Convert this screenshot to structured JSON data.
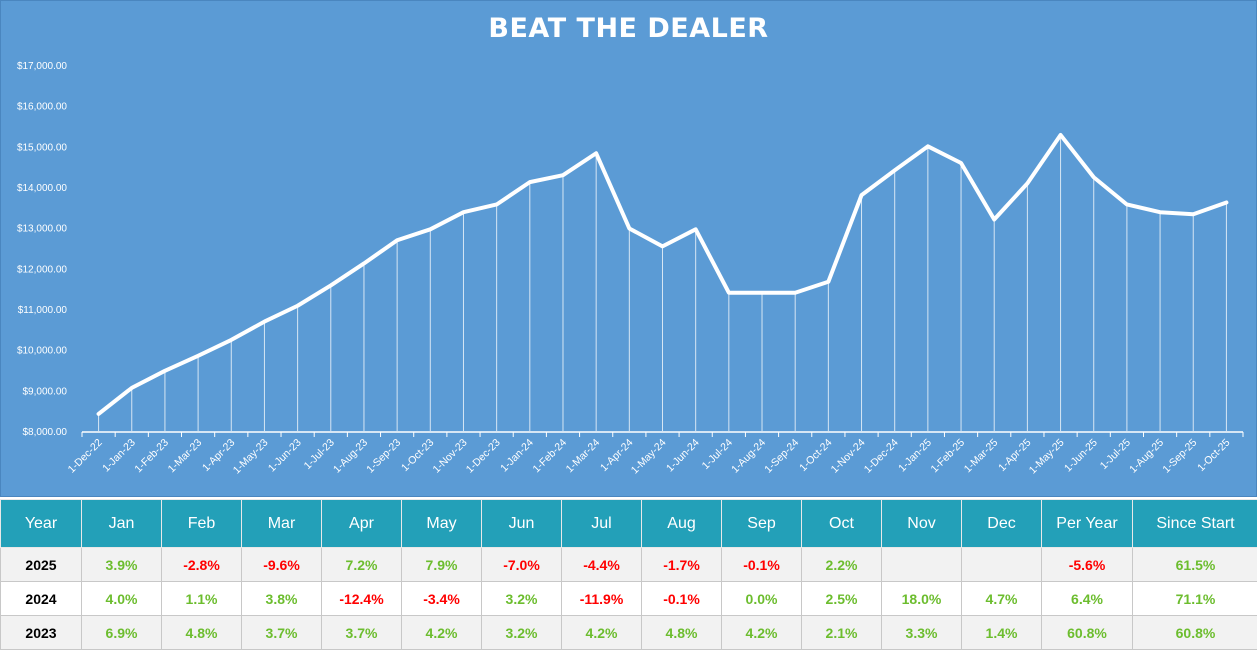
{
  "chart_data": {
    "type": "line",
    "title": "BEAT THE DEALER",
    "xlabel": "",
    "ylabel": "",
    "ylim": [
      8000,
      17000
    ],
    "y_ticks": [
      "$8,000.00",
      "$9,000.00",
      "$10,000.00",
      "$11,000.00",
      "$12,000.00",
      "$13,000.00",
      "$14,000.00",
      "$15,000.00",
      "$16,000.00",
      "$17,000.00"
    ],
    "y_tick_values": [
      8000,
      9000,
      10000,
      11000,
      12000,
      13000,
      14000,
      15000,
      16000,
      17000
    ],
    "categories": [
      "1-Dec-22",
      "1-Jan-23",
      "1-Feb-23",
      "1-Mar-23",
      "1-Apr-23",
      "1-May-23",
      "1-Jun-23",
      "1-Jul-23",
      "1-Aug-23",
      "1-Sep-23",
      "1-Oct-23",
      "1-Nov-23",
      "1-Dec-23",
      "1-Jan-24",
      "1-Feb-24",
      "1-Mar-24",
      "1-Apr-24",
      "1-May-24",
      "1-Jun-24",
      "1-Jul-24",
      "1-Aug-24",
      "1-Sep-24",
      "1-Oct-24",
      "1-Nov-24",
      "1-Dec-24",
      "1-Jan-25",
      "1-Feb-25",
      "1-Mar-25",
      "1-Apr-25",
      "1-May-25",
      "1-Jun-25",
      "1-Jul-25",
      "1-Aug-25",
      "1-Sep-25",
      "1-Oct-25"
    ],
    "values": [
      8420,
      9060,
      9480,
      9850,
      10240,
      10690,
      11080,
      11580,
      12120,
      12690,
      12960,
      13380,
      13570,
      14120,
      14290,
      14830,
      12980,
      12540,
      12960,
      11400,
      11400,
      11400,
      11670,
      13800,
      14410,
      15000,
      14590,
      13200,
      14090,
      15280,
      14240,
      13570,
      13380,
      13330,
      13620
    ],
    "grid": false,
    "colors": {
      "background": "#5b9bd5",
      "line": "#ffffff"
    }
  },
  "table": {
    "headers": [
      "Year",
      "Jan",
      "Feb",
      "Mar",
      "Apr",
      "May",
      "Jun",
      "Jul",
      "Aug",
      "Sep",
      "Oct",
      "Nov",
      "Dec",
      "Per Year",
      "Since Start"
    ],
    "rows": [
      [
        "2025",
        "3.9%",
        "-2.8%",
        "-9.6%",
        "7.2%",
        "7.9%",
        "-7.0%",
        "-4.4%",
        "-1.7%",
        "-0.1%",
        "2.2%",
        "",
        "",
        "-5.6%",
        "61.5%"
      ],
      [
        "2024",
        "4.0%",
        "1.1%",
        "3.8%",
        "-12.4%",
        "-3.4%",
        "3.2%",
        "-11.9%",
        "-0.1%",
        "0.0%",
        "2.5%",
        "18.0%",
        "4.7%",
        "6.4%",
        "71.1%"
      ],
      [
        "2023",
        "6.9%",
        "4.8%",
        "3.7%",
        "3.7%",
        "4.2%",
        "3.2%",
        "4.2%",
        "4.8%",
        "4.2%",
        "2.1%",
        "3.3%",
        "1.4%",
        "60.8%",
        "60.8%"
      ]
    ],
    "colors": {
      "header": "#23a0b8",
      "positive": "#6cbd2e",
      "negative": "#ff0000"
    }
  }
}
